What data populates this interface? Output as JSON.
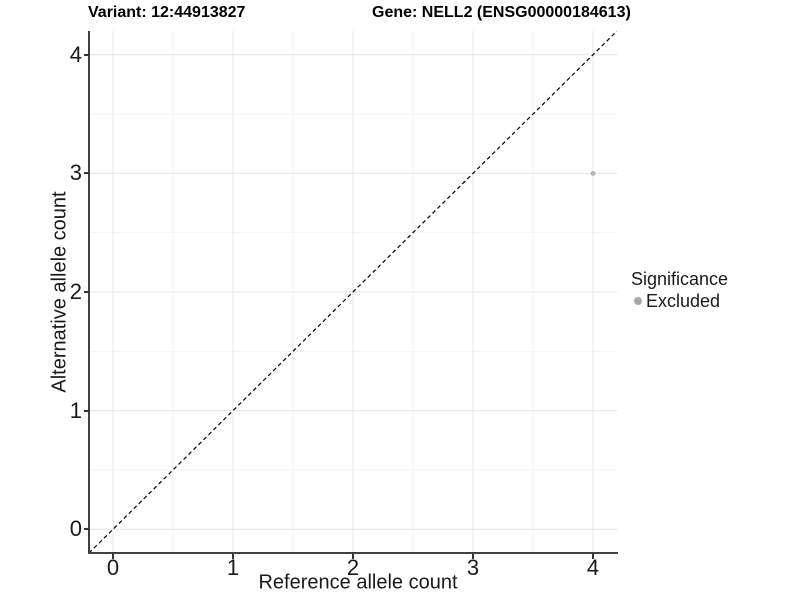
{
  "chart_data": {
    "type": "scatter",
    "titles": {
      "left": "Variant: 12:44913827",
      "right": "Gene: NELL2 (ENSG00000184613)"
    },
    "xlabel": "Reference allele count",
    "ylabel": "Alternative allele count",
    "xlim": [
      -0.2,
      4.2
    ],
    "ylim": [
      -0.2,
      4.2
    ],
    "xticks": [
      0,
      1,
      2,
      3,
      4
    ],
    "yticks": [
      0,
      1,
      2,
      3,
      4
    ],
    "minor_gridlines_x": [
      0.5,
      1.5,
      2.5,
      3.5
    ],
    "minor_gridlines_y": [
      0.5,
      1.5,
      2.5,
      3.5
    ],
    "grid": "on",
    "reference_line": {
      "equation": "y = x",
      "style": "dashed",
      "color": "#000000"
    },
    "series": [
      {
        "name": "Excluded",
        "color": "#b5b5b5",
        "point_radius": 2.5,
        "points": [
          {
            "x": 4,
            "y": 3
          }
        ]
      }
    ],
    "legend": {
      "title": "Significance",
      "position": "right",
      "entries": [
        {
          "label": "Excluded",
          "swatch_color": "#a8a8a8"
        }
      ]
    }
  },
  "styles": {
    "major_grid": "#e4e4e4",
    "minor_grid": "#f2f2f2",
    "axis_line": "#404040",
    "tick_color": "#333333"
  }
}
